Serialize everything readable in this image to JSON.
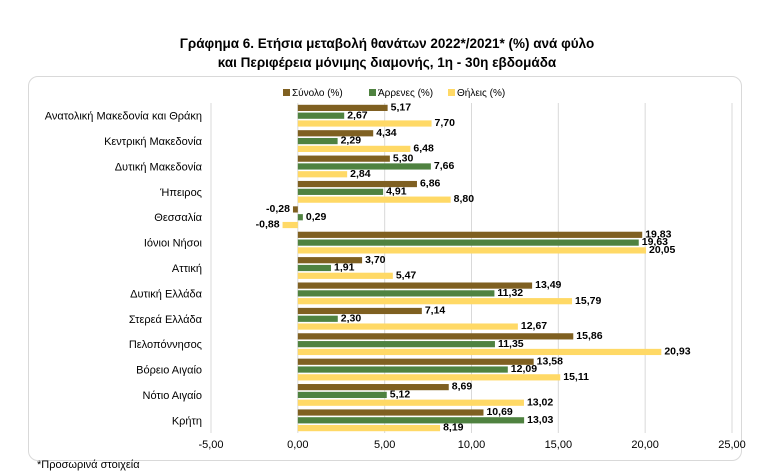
{
  "title_line1": "Γράφημα 6. Ετήσια μεταβολή θανάτων 2022*/2021* (%) ανά φύλο",
  "title_line2": "και Περιφέρεια μόνιμης διαμονής, 1η - 30η εβδομάδα",
  "footnote": "*Προσωρινά στοιχεία",
  "chart_data": {
    "type": "bar",
    "orientation": "horizontal",
    "categories": [
      "Ανατολική Μακεδονία και Θράκη",
      "Κεντρική Μακεδονία",
      "Δυτική Μακεδονία",
      "Ήπειρος",
      "Θεσσαλία",
      "Ιόνιοι Νήσοι",
      "Αττική",
      "Δυτική Ελλάδα",
      "Στερεά Ελλάδα",
      "Πελοπόννησος",
      "Βόρειο Αιγαίο",
      "Νότιο Αιγαίο",
      "Κρήτη"
    ],
    "series": [
      {
        "name": "Σύνολο (%)",
        "color": "#7f6021",
        "values": [
          5.17,
          4.34,
          5.3,
          6.86,
          -0.28,
          19.83,
          3.7,
          13.49,
          7.14,
          15.86,
          13.58,
          8.69,
          10.69
        ],
        "labels": [
          "5,17",
          "4,34",
          "5,30",
          "6,86",
          "-0,28",
          "19,83",
          "3,70",
          "13,49",
          "7,14",
          "15,86",
          "13,58",
          "8,69",
          "10,69"
        ]
      },
      {
        "name": "Άρρενες (%)",
        "color": "#4f8240",
        "values": [
          2.67,
          2.29,
          7.66,
          4.91,
          0.29,
          19.63,
          1.91,
          11.32,
          2.3,
          11.35,
          12.09,
          5.12,
          13.03
        ],
        "labels": [
          "2,67",
          "2,29",
          "7,66",
          "4,91",
          "0,29",
          "19,63",
          "1,91",
          "11,32",
          "2,30",
          "11,35",
          "12,09",
          "5,12",
          "13,03"
        ]
      },
      {
        "name": "Θήλεις (%)",
        "color": "#ffd966",
        "values": [
          7.7,
          6.48,
          2.84,
          8.8,
          -0.88,
          20.05,
          5.47,
          15.79,
          12.67,
          20.93,
          15.11,
          13.02,
          8.19
        ],
        "labels": [
          "7,70",
          "6,48",
          "2,84",
          "8,80",
          "-0,88",
          "20,05",
          "5,47",
          "15,79",
          "12,67",
          "20,93",
          "15,11",
          "13,02",
          "8,19"
        ]
      }
    ],
    "xlim": [
      -5,
      25
    ],
    "xticks": [
      -5,
      0,
      5,
      10,
      15,
      20,
      25
    ],
    "xtick_labels": [
      "-5,00",
      "0,00",
      "5,00",
      "10,00",
      "15,00",
      "20,00",
      "25,00"
    ],
    "legend_position": "top",
    "grid": "vertical gridlines",
    "xlabel": "",
    "ylabel": ""
  }
}
